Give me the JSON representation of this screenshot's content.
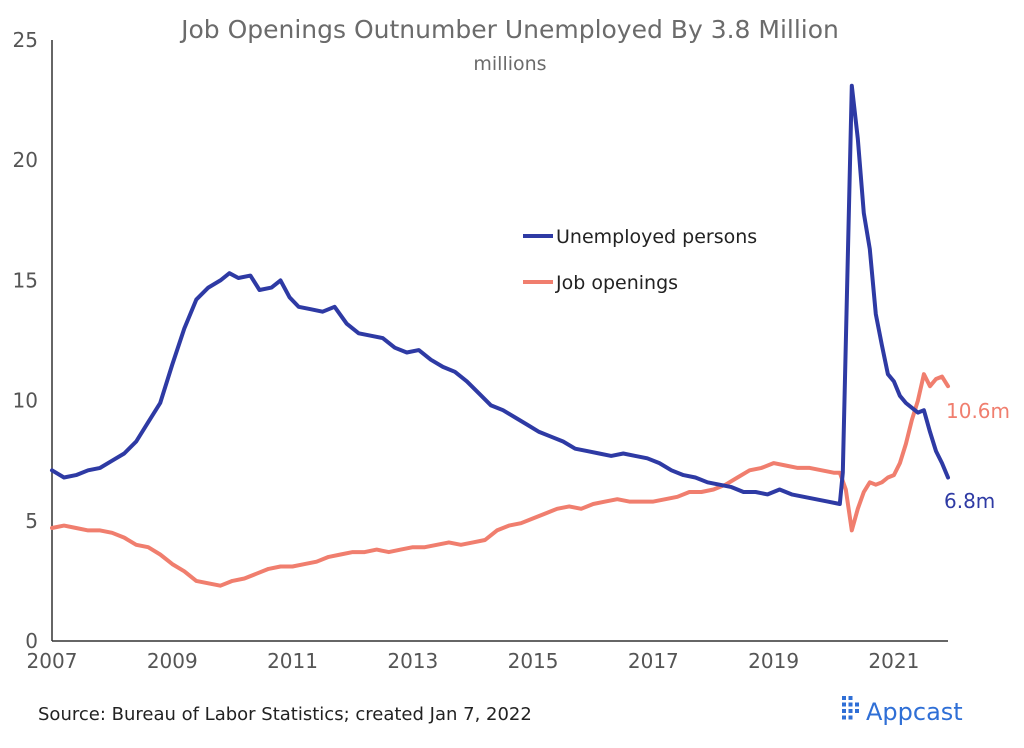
{
  "chart_data": {
    "type": "line",
    "title": "Job Openings Outnumber Unemployed By 3.8 Million",
    "subtitle": "millions",
    "xlabel": "",
    "ylabel": "",
    "xlim": [
      2007.0,
      2021.9
    ],
    "ylim": [
      0,
      25
    ],
    "yticks": [
      0,
      5,
      10,
      15,
      20,
      25
    ],
    "xticks": [
      2007,
      2009,
      2011,
      2013,
      2015,
      2017,
      2019,
      2021
    ],
    "grid": false,
    "legend_position": "center-right",
    "colors": {
      "unemployed": "#2e3aa4",
      "openings": "#f07e6e",
      "axis": "#333333"
    },
    "series": [
      {
        "name": "Unemployed persons",
        "key": "unemployed",
        "color": "#2e3aa4",
        "end_label": "6.8m",
        "points": [
          [
            2007.0,
            7.1
          ],
          [
            2007.2,
            6.8
          ],
          [
            2007.4,
            6.9
          ],
          [
            2007.6,
            7.1
          ],
          [
            2007.8,
            7.2
          ],
          [
            2008.0,
            7.5
          ],
          [
            2008.2,
            7.8
          ],
          [
            2008.4,
            8.3
          ],
          [
            2008.6,
            9.1
          ],
          [
            2008.8,
            9.9
          ],
          [
            2009.0,
            11.5
          ],
          [
            2009.2,
            13.0
          ],
          [
            2009.4,
            14.2
          ],
          [
            2009.6,
            14.7
          ],
          [
            2009.8,
            15.0
          ],
          [
            2009.95,
            15.3
          ],
          [
            2010.1,
            15.1
          ],
          [
            2010.3,
            15.2
          ],
          [
            2010.45,
            14.6
          ],
          [
            2010.65,
            14.7
          ],
          [
            2010.8,
            15.0
          ],
          [
            2010.95,
            14.3
          ],
          [
            2011.1,
            13.9
          ],
          [
            2011.3,
            13.8
          ],
          [
            2011.5,
            13.7
          ],
          [
            2011.7,
            13.9
          ],
          [
            2011.9,
            13.2
          ],
          [
            2012.1,
            12.8
          ],
          [
            2012.3,
            12.7
          ],
          [
            2012.5,
            12.6
          ],
          [
            2012.7,
            12.2
          ],
          [
            2012.9,
            12.0
          ],
          [
            2013.1,
            12.1
          ],
          [
            2013.3,
            11.7
          ],
          [
            2013.5,
            11.4
          ],
          [
            2013.7,
            11.2
          ],
          [
            2013.9,
            10.8
          ],
          [
            2014.1,
            10.3
          ],
          [
            2014.3,
            9.8
          ],
          [
            2014.5,
            9.6
          ],
          [
            2014.7,
            9.3
          ],
          [
            2014.9,
            9.0
          ],
          [
            2015.1,
            8.7
          ],
          [
            2015.3,
            8.5
          ],
          [
            2015.5,
            8.3
          ],
          [
            2015.7,
            8.0
          ],
          [
            2015.9,
            7.9
          ],
          [
            2016.1,
            7.8
          ],
          [
            2016.3,
            7.7
          ],
          [
            2016.5,
            7.8
          ],
          [
            2016.7,
            7.7
          ],
          [
            2016.9,
            7.6
          ],
          [
            2017.1,
            7.4
          ],
          [
            2017.3,
            7.1
          ],
          [
            2017.5,
            6.9
          ],
          [
            2017.7,
            6.8
          ],
          [
            2017.9,
            6.6
          ],
          [
            2018.1,
            6.5
          ],
          [
            2018.3,
            6.4
          ],
          [
            2018.5,
            6.2
          ],
          [
            2018.7,
            6.2
          ],
          [
            2018.9,
            6.1
          ],
          [
            2019.1,
            6.3
          ],
          [
            2019.3,
            6.1
          ],
          [
            2019.5,
            6.0
          ],
          [
            2019.7,
            5.9
          ],
          [
            2019.9,
            5.8
          ],
          [
            2020.1,
            5.7
          ],
          [
            2020.15,
            7.0
          ],
          [
            2020.3,
            23.1
          ],
          [
            2020.4,
            20.9
          ],
          [
            2020.5,
            17.8
          ],
          [
            2020.6,
            16.3
          ],
          [
            2020.7,
            13.6
          ],
          [
            2020.8,
            12.3
          ],
          [
            2020.9,
            11.1
          ],
          [
            2021.0,
            10.8
          ],
          [
            2021.1,
            10.2
          ],
          [
            2021.2,
            9.9
          ],
          [
            2021.3,
            9.7
          ],
          [
            2021.4,
            9.5
          ],
          [
            2021.5,
            9.6
          ],
          [
            2021.6,
            8.7
          ],
          [
            2021.7,
            7.9
          ],
          [
            2021.8,
            7.4
          ],
          [
            2021.9,
            6.8
          ]
        ]
      },
      {
        "name": "Job openings",
        "key": "openings",
        "color": "#f07e6e",
        "end_label": "10.6m",
        "points": [
          [
            2007.0,
            4.7
          ],
          [
            2007.2,
            4.8
          ],
          [
            2007.4,
            4.7
          ],
          [
            2007.6,
            4.6
          ],
          [
            2007.8,
            4.6
          ],
          [
            2008.0,
            4.5
          ],
          [
            2008.2,
            4.3
          ],
          [
            2008.4,
            4.0
          ],
          [
            2008.6,
            3.9
          ],
          [
            2008.8,
            3.6
          ],
          [
            2009.0,
            3.2
          ],
          [
            2009.2,
            2.9
          ],
          [
            2009.4,
            2.5
          ],
          [
            2009.6,
            2.4
          ],
          [
            2009.8,
            2.3
          ],
          [
            2010.0,
            2.5
          ],
          [
            2010.2,
            2.6
          ],
          [
            2010.4,
            2.8
          ],
          [
            2010.6,
            3.0
          ],
          [
            2010.8,
            3.1
          ],
          [
            2011.0,
            3.1
          ],
          [
            2011.2,
            3.2
          ],
          [
            2011.4,
            3.3
          ],
          [
            2011.6,
            3.5
          ],
          [
            2011.8,
            3.6
          ],
          [
            2012.0,
            3.7
          ],
          [
            2012.2,
            3.7
          ],
          [
            2012.4,
            3.8
          ],
          [
            2012.6,
            3.7
          ],
          [
            2012.8,
            3.8
          ],
          [
            2013.0,
            3.9
          ],
          [
            2013.2,
            3.9
          ],
          [
            2013.4,
            4.0
          ],
          [
            2013.6,
            4.1
          ],
          [
            2013.8,
            4.0
          ],
          [
            2014.0,
            4.1
          ],
          [
            2014.2,
            4.2
          ],
          [
            2014.4,
            4.6
          ],
          [
            2014.6,
            4.8
          ],
          [
            2014.8,
            4.9
          ],
          [
            2015.0,
            5.1
          ],
          [
            2015.2,
            5.3
          ],
          [
            2015.4,
            5.5
          ],
          [
            2015.6,
            5.6
          ],
          [
            2015.8,
            5.5
          ],
          [
            2016.0,
            5.7
          ],
          [
            2016.2,
            5.8
          ],
          [
            2016.4,
            5.9
          ],
          [
            2016.6,
            5.8
          ],
          [
            2016.8,
            5.8
          ],
          [
            2017.0,
            5.8
          ],
          [
            2017.2,
            5.9
          ],
          [
            2017.4,
            6.0
          ],
          [
            2017.6,
            6.2
          ],
          [
            2017.8,
            6.2
          ],
          [
            2018.0,
            6.3
          ],
          [
            2018.2,
            6.5
          ],
          [
            2018.4,
            6.8
          ],
          [
            2018.6,
            7.1
          ],
          [
            2018.8,
            7.2
          ],
          [
            2019.0,
            7.4
          ],
          [
            2019.2,
            7.3
          ],
          [
            2019.4,
            7.2
          ],
          [
            2019.6,
            7.2
          ],
          [
            2019.8,
            7.1
          ],
          [
            2020.0,
            7.0
          ],
          [
            2020.1,
            7.0
          ],
          [
            2020.2,
            6.3
          ],
          [
            2020.3,
            4.6
          ],
          [
            2020.4,
            5.5
          ],
          [
            2020.5,
            6.2
          ],
          [
            2020.6,
            6.6
          ],
          [
            2020.7,
            6.5
          ],
          [
            2020.8,
            6.6
          ],
          [
            2020.9,
            6.8
          ],
          [
            2021.0,
            6.9
          ],
          [
            2021.1,
            7.4
          ],
          [
            2021.2,
            8.2
          ],
          [
            2021.3,
            9.2
          ],
          [
            2021.4,
            10.0
          ],
          [
            2021.5,
            11.1
          ],
          [
            2021.6,
            10.6
          ],
          [
            2021.7,
            10.9
          ],
          [
            2021.8,
            11.0
          ],
          [
            2021.9,
            10.6
          ]
        ]
      }
    ],
    "source": "Source: Bureau of Labor Statistics; created Jan 7, 2022"
  },
  "logo": {
    "text": "Appcast",
    "icon": "grid-dots-icon",
    "color": "#2f6fd6"
  }
}
